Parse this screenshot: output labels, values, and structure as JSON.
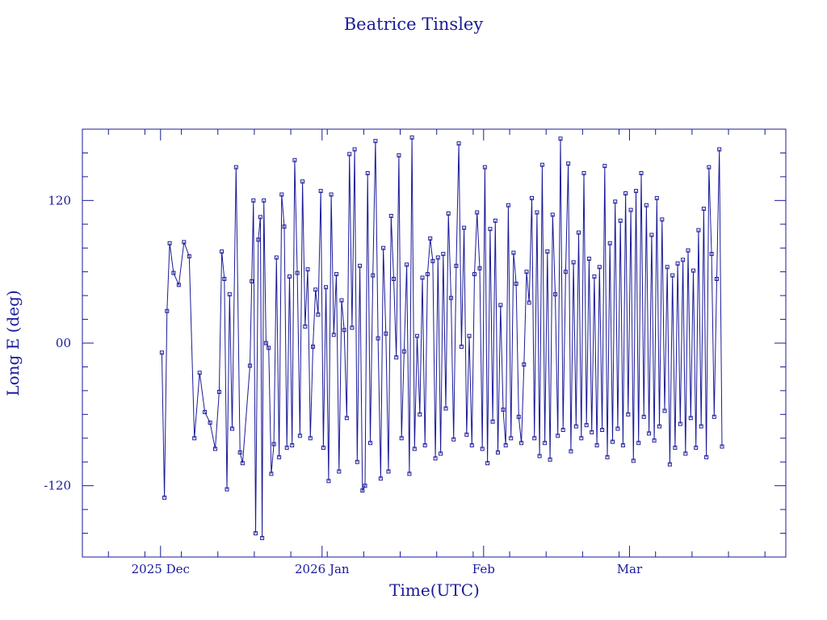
{
  "chart_data": {
    "type": "line",
    "title": "Beatrice Tinsley",
    "xlabel": "Time(UTC)",
    "ylabel": "Long E (deg)",
    "x_ticks": [
      {
        "date": "2025-12-01",
        "label": "2025 Dec"
      },
      {
        "date": "2026-01-01",
        "label": "2026 Jan"
      },
      {
        "date": "2026-02-01",
        "label": "Feb"
      },
      {
        "date": "2026-03-01",
        "label": "Mar"
      }
    ],
    "y_ticks": [
      {
        "value": 120,
        "label": "120"
      },
      {
        "value": 0,
        "label": "00"
      },
      {
        "value": -120,
        "label": "-120"
      }
    ],
    "xlim": [
      "2025-11-16",
      "2026-03-31"
    ],
    "ylim": [
      -180,
      180
    ],
    "grid": false,
    "series": [
      {
        "points": [
          [
            "2025-12-01",
            -8
          ],
          [
            "2025-12-01",
            -130
          ],
          [
            "2025-12-02",
            27
          ],
          [
            "2025-12-02",
            84
          ],
          [
            "2025-12-03",
            59
          ],
          [
            "2025-12-04",
            49
          ],
          [
            "2025-12-05",
            85
          ],
          [
            "2025-12-06",
            73
          ],
          [
            "2025-12-07",
            -80
          ],
          [
            "2025-12-08",
            -25
          ],
          [
            "2025-12-09",
            -58
          ],
          [
            "2025-12-10",
            -67
          ],
          [
            "2025-12-11",
            -89
          ],
          [
            "2025-12-12",
            -41
          ],
          [
            "2025-12-12",
            77
          ],
          [
            "2025-12-13",
            54
          ],
          [
            "2025-12-13",
            -123
          ],
          [
            "2025-12-14",
            41
          ],
          [
            "2025-12-14",
            -72
          ],
          [
            "2025-12-15",
            148
          ],
          [
            "2025-12-16",
            -92
          ],
          [
            "2025-12-16",
            -101
          ],
          [
            "2025-12-18",
            -19
          ],
          [
            "2025-12-18",
            52
          ],
          [
            "2025-12-18",
            120
          ],
          [
            "2025-12-19",
            -160
          ],
          [
            "2025-12-19",
            87
          ],
          [
            "2025-12-20",
            106
          ],
          [
            "2025-12-20",
            -164
          ],
          [
            "2025-12-20",
            120
          ],
          [
            "2025-12-21",
            0
          ],
          [
            "2025-12-21",
            -4
          ],
          [
            "2025-12-22",
            -110
          ],
          [
            "2025-12-22",
            -85
          ],
          [
            "2025-12-23",
            72
          ],
          [
            "2025-12-23",
            -96
          ],
          [
            "2025-12-24",
            125
          ],
          [
            "2025-12-24",
            98
          ],
          [
            "2025-12-25",
            -88
          ],
          [
            "2025-12-25",
            56
          ],
          [
            "2025-12-26",
            -86
          ],
          [
            "2025-12-26",
            154
          ],
          [
            "2025-12-27",
            59
          ],
          [
            "2025-12-27",
            -78
          ],
          [
            "2025-12-28",
            136
          ],
          [
            "2025-12-28",
            14
          ],
          [
            "2025-12-29",
            62
          ],
          [
            "2025-12-29",
            -80
          ],
          [
            "2025-12-30",
            -3
          ],
          [
            "2025-12-30",
            45
          ],
          [
            "2025-12-31",
            24
          ],
          [
            "2025-12-31",
            128
          ],
          [
            "2026-01-01",
            -88
          ],
          [
            "2026-01-01",
            47
          ],
          [
            "2026-01-02",
            -116
          ],
          [
            "2026-01-02",
            125
          ],
          [
            "2026-01-03",
            7
          ],
          [
            "2026-01-03",
            58
          ],
          [
            "2026-01-04",
            -108
          ],
          [
            "2026-01-04",
            36
          ],
          [
            "2026-01-05",
            11
          ],
          [
            "2026-01-05",
            -63
          ],
          [
            "2026-01-06",
            159
          ],
          [
            "2026-01-06",
            13
          ],
          [
            "2026-01-07",
            163
          ],
          [
            "2026-01-07",
            -100
          ],
          [
            "2026-01-08",
            65
          ],
          [
            "2026-01-08",
            -124
          ],
          [
            "2026-01-09",
            -120
          ],
          [
            "2026-01-09",
            143
          ],
          [
            "2026-01-10",
            -84
          ],
          [
            "2026-01-10",
            57
          ],
          [
            "2026-01-11",
            170
          ],
          [
            "2026-01-11",
            4
          ],
          [
            "2026-01-12",
            -114
          ],
          [
            "2026-01-12",
            80
          ],
          [
            "2026-01-13",
            8
          ],
          [
            "2026-01-13",
            -108
          ],
          [
            "2026-01-14",
            107
          ],
          [
            "2026-01-14",
            54
          ],
          [
            "2026-01-15",
            -12
          ],
          [
            "2026-01-15",
            158
          ],
          [
            "2026-01-16",
            -80
          ],
          [
            "2026-01-16",
            -7
          ],
          [
            "2026-01-17",
            66
          ],
          [
            "2026-01-17",
            -110
          ],
          [
            "2026-01-18",
            173
          ],
          [
            "2026-01-18",
            -89
          ],
          [
            "2026-01-19",
            6
          ],
          [
            "2026-01-19",
            -60
          ],
          [
            "2026-01-20",
            55
          ],
          [
            "2026-01-20",
            -86
          ],
          [
            "2026-01-21",
            58
          ],
          [
            "2026-01-21",
            88
          ],
          [
            "2026-01-22",
            69
          ],
          [
            "2026-01-22",
            -97
          ],
          [
            "2026-01-23",
            72
          ],
          [
            "2026-01-23",
            -93
          ],
          [
            "2026-01-24",
            75
          ],
          [
            "2026-01-24",
            -55
          ],
          [
            "2026-01-25",
            109
          ],
          [
            "2026-01-25",
            38
          ],
          [
            "2026-01-26",
            -81
          ],
          [
            "2026-01-26",
            65
          ],
          [
            "2026-01-27",
            168
          ],
          [
            "2026-01-27",
            -3
          ],
          [
            "2026-01-28",
            97
          ],
          [
            "2026-01-28",
            -77
          ],
          [
            "2026-01-29",
            6
          ],
          [
            "2026-01-29",
            -86
          ],
          [
            "2026-01-30",
            58
          ],
          [
            "2026-01-30",
            110
          ],
          [
            "2026-01-31",
            63
          ],
          [
            "2026-01-31",
            -89
          ],
          [
            "2026-02-01",
            148
          ],
          [
            "2026-02-01",
            -101
          ],
          [
            "2026-02-02",
            96
          ],
          [
            "2026-02-02",
            -66
          ],
          [
            "2026-02-03",
            103
          ],
          [
            "2026-02-03",
            -92
          ],
          [
            "2026-02-04",
            32
          ],
          [
            "2026-02-04",
            -56
          ],
          [
            "2026-02-05",
            -86
          ],
          [
            "2026-02-05",
            116
          ],
          [
            "2026-02-06",
            -80
          ],
          [
            "2026-02-06",
            76
          ],
          [
            "2026-02-07",
            50
          ],
          [
            "2026-02-07",
            -62
          ],
          [
            "2026-02-08",
            -84
          ],
          [
            "2026-02-08",
            -18
          ],
          [
            "2026-02-09",
            60
          ],
          [
            "2026-02-09",
            34
          ],
          [
            "2026-02-10",
            122
          ],
          [
            "2026-02-10",
            -80
          ],
          [
            "2026-02-11",
            110
          ],
          [
            "2026-02-11",
            -95
          ],
          [
            "2026-02-12",
            150
          ],
          [
            "2026-02-12",
            -84
          ],
          [
            "2026-02-13",
            77
          ],
          [
            "2026-02-13",
            -98
          ],
          [
            "2026-02-14",
            108
          ],
          [
            "2026-02-14",
            41
          ],
          [
            "2026-02-15",
            -78
          ],
          [
            "2026-02-15",
            172
          ],
          [
            "2026-02-16",
            -73
          ],
          [
            "2026-02-16",
            60
          ],
          [
            "2026-02-17",
            151
          ],
          [
            "2026-02-17",
            -91
          ],
          [
            "2026-02-18",
            68
          ],
          [
            "2026-02-18",
            -70
          ],
          [
            "2026-02-19",
            93
          ],
          [
            "2026-02-19",
            -80
          ],
          [
            "2026-02-20",
            143
          ],
          [
            "2026-02-20",
            -69
          ],
          [
            "2026-02-21",
            71
          ],
          [
            "2026-02-21",
            -75
          ],
          [
            "2026-02-22",
            56
          ],
          [
            "2026-02-22",
            -86
          ],
          [
            "2026-02-23",
            64
          ],
          [
            "2026-02-23",
            -73
          ],
          [
            "2026-02-24",
            149
          ],
          [
            "2026-02-24",
            -96
          ],
          [
            "2026-02-25",
            84
          ],
          [
            "2026-02-25",
            -83
          ],
          [
            "2026-02-26",
            119
          ],
          [
            "2026-02-26",
            -72
          ],
          [
            "2026-02-27",
            103
          ],
          [
            "2026-02-27",
            -86
          ],
          [
            "2026-02-28",
            126
          ],
          [
            "2026-02-28",
            -60
          ],
          [
            "2026-03-01",
            112
          ],
          [
            "2026-03-01",
            -99
          ],
          [
            "2026-03-02",
            128
          ],
          [
            "2026-03-02",
            -84
          ],
          [
            "2026-03-03",
            143
          ],
          [
            "2026-03-03",
            -62
          ],
          [
            "2026-03-04",
            116
          ],
          [
            "2026-03-04",
            -76
          ],
          [
            "2026-03-05",
            91
          ],
          [
            "2026-03-05",
            -82
          ],
          [
            "2026-03-06",
            122
          ],
          [
            "2026-03-06",
            -70
          ],
          [
            "2026-03-07",
            104
          ],
          [
            "2026-03-07",
            -57
          ],
          [
            "2026-03-08",
            64
          ],
          [
            "2026-03-08",
            -102
          ],
          [
            "2026-03-09",
            57
          ],
          [
            "2026-03-09",
            -88
          ],
          [
            "2026-03-10",
            67
          ],
          [
            "2026-03-10",
            -68
          ],
          [
            "2026-03-11",
            70
          ],
          [
            "2026-03-11",
            -93
          ],
          [
            "2026-03-12",
            78
          ],
          [
            "2026-03-12",
            -63
          ],
          [
            "2026-03-13",
            61
          ],
          [
            "2026-03-13",
            -88
          ],
          [
            "2026-03-14",
            95
          ],
          [
            "2026-03-14",
            -70
          ],
          [
            "2026-03-15",
            113
          ],
          [
            "2026-03-15",
            -96
          ],
          [
            "2026-03-16",
            148
          ],
          [
            "2026-03-16",
            75
          ],
          [
            "2026-03-17",
            -62
          ],
          [
            "2026-03-17",
            54
          ],
          [
            "2026-03-18",
            163
          ],
          [
            "2026-03-18",
            -87
          ]
        ]
      }
    ]
  }
}
